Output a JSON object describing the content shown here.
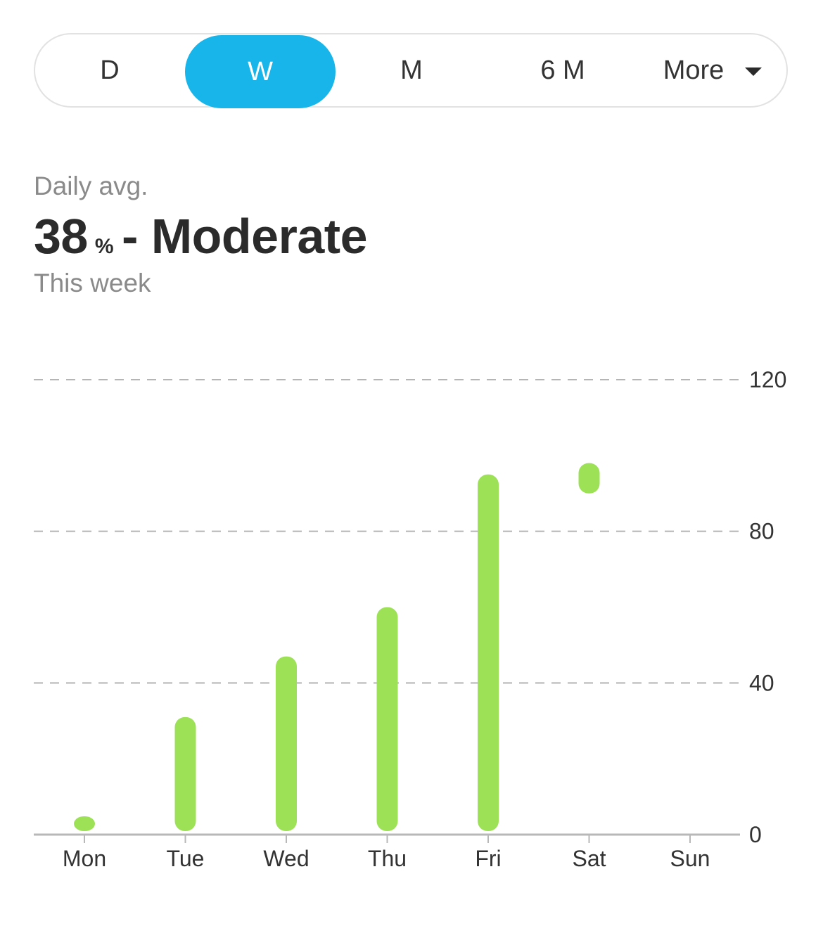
{
  "range_selector": {
    "options": [
      {
        "label": "D",
        "active": false
      },
      {
        "label": "W",
        "active": true
      },
      {
        "label": "M",
        "active": false
      },
      {
        "label": "6 M",
        "active": false
      }
    ],
    "more_label": "More",
    "more_icon": "caret-down-icon",
    "active_color": "#17b5ea"
  },
  "summary": {
    "label": "Daily avg.",
    "value": "38",
    "unit": "%",
    "separator": "-",
    "level": "Moderate",
    "period": "This week"
  },
  "chart_data": {
    "type": "bar",
    "categories": [
      "Mon",
      "Tue",
      "Wed",
      "Thu",
      "Fri",
      "Sat",
      "Sun"
    ],
    "series": [
      {
        "ranges": [
          [
            0,
            3
          ],
          [
            0,
            31
          ],
          [
            0,
            47
          ],
          [
            0,
            60
          ],
          [
            0,
            95
          ],
          [
            90,
            98
          ],
          null
        ]
      }
    ],
    "yticks": [
      0,
      40,
      80,
      120
    ],
    "ylim": [
      0,
      120
    ],
    "y_axis_position": "right",
    "grid": "dashed-horizontal",
    "bar_color": "#9de157"
  }
}
